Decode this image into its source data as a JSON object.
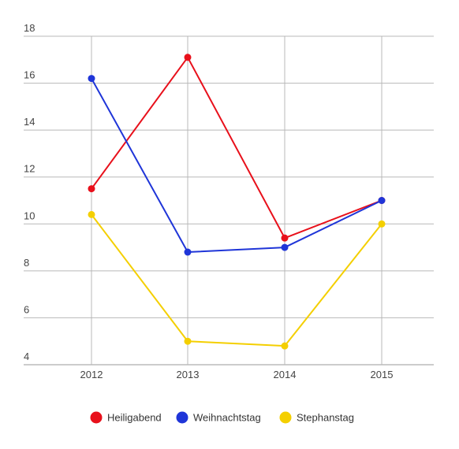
{
  "chart_data": {
    "type": "line",
    "categories": [
      "2012",
      "2013",
      "2014",
      "2015"
    ],
    "ylim": [
      4,
      18
    ],
    "y_ticks": [
      "4",
      "6",
      "8",
      "10",
      "12",
      "14",
      "16",
      "18"
    ],
    "grid": true,
    "legend_position": "bottom",
    "series": [
      {
        "name": "Heiligabend",
        "color": "#e8101b",
        "values": [
          11.5,
          17.1,
          9.4,
          11.0
        ]
      },
      {
        "name": "Weihnachtstag",
        "color": "#1f35d8",
        "values": [
          16.2,
          8.8,
          9.0,
          11.0
        ]
      },
      {
        "name": "Stephanstag",
        "color": "#f4cf00",
        "values": [
          10.4,
          5.0,
          4.8,
          10.0
        ]
      }
    ]
  }
}
